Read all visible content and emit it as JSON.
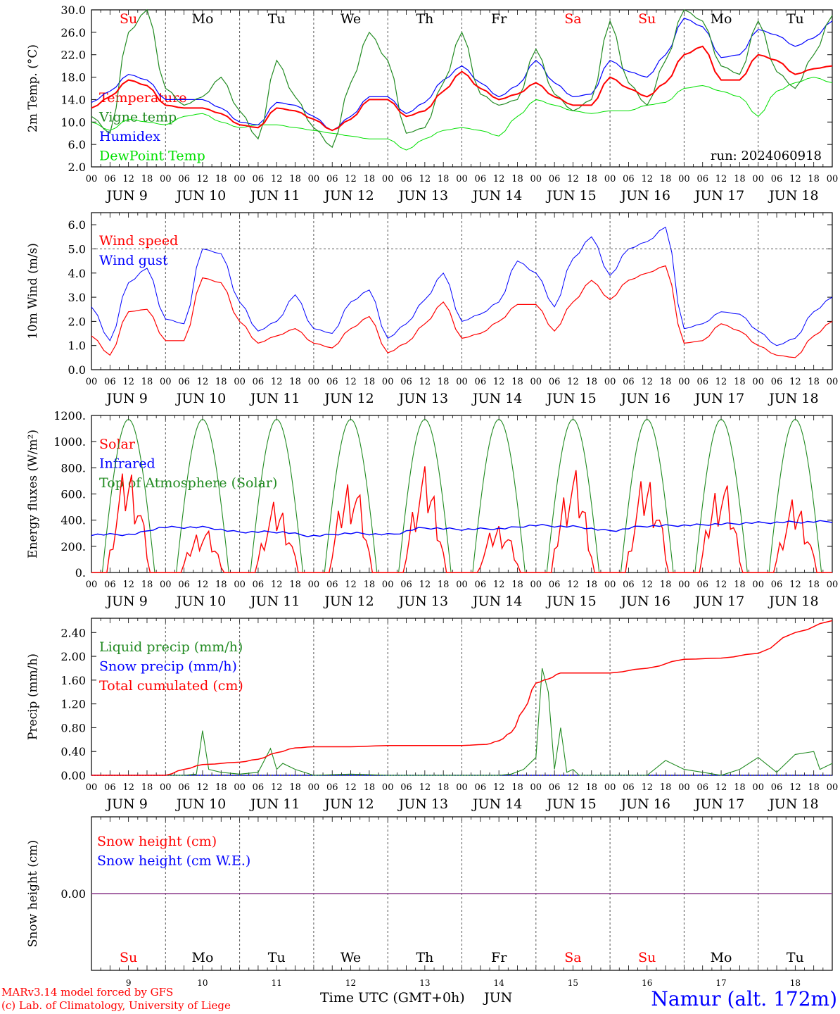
{
  "run_label": "run: 2024060918",
  "footer": {
    "credit_line1": "MARv3.14 model forced by GFS",
    "credit_line2": "(c) Lab. of Climatology, University of Liege",
    "time_axis_label": "Time UTC (GMT+0h)",
    "month": "JUN",
    "station": "Namur (alt. 172m)"
  },
  "colors": {
    "red": "#ff0000",
    "blue": "#0000ff",
    "green": "#228b22",
    "lightgreen": "#00e000",
    "weekend": "#ff0000",
    "weekday": "#000000",
    "grid": "#555555"
  },
  "days": [
    "9",
    "10",
    "11",
    "12",
    "13",
    "14",
    "15",
    "16",
    "17",
    "18"
  ],
  "day_labels": [
    "JUN  9",
    "JUN 10",
    "JUN 11",
    "JUN 12",
    "JUN 13",
    "JUN 14",
    "JUN 15",
    "JUN 16",
    "JUN 17",
    "JUN 18"
  ],
  "weekdays": [
    {
      "label": "Su",
      "weekend": true
    },
    {
      "label": "Mo",
      "weekend": false
    },
    {
      "label": "Tu",
      "weekend": false
    },
    {
      "label": "We",
      "weekend": false
    },
    {
      "label": "Th",
      "weekend": false
    },
    {
      "label": "Fr",
      "weekend": false
    },
    {
      "label": "Sa",
      "weekend": true
    },
    {
      "label": "Su",
      "weekend": true
    },
    {
      "label": "Mo",
      "weekend": false
    },
    {
      "label": "Tu",
      "weekend": false
    }
  ],
  "hour_ticks": [
    "00",
    "06",
    "12",
    "18"
  ],
  "chart_data": [
    {
      "id": "temperature",
      "type": "line",
      "ylabel": "2m Temp. (°C)",
      "ylim": [
        2,
        30
      ],
      "yticks": [
        "2.0",
        "6.0",
        "10.0",
        "14.0",
        "18.0",
        "22.0",
        "26.0",
        "30.0"
      ],
      "ytick_values": [
        2,
        6,
        10,
        14,
        18,
        22,
        26,
        30
      ],
      "legend": [
        {
          "name": "Temperature",
          "color": "#ff0000"
        },
        {
          "name": "Vigne temp",
          "color": "#228b22"
        },
        {
          "name": "Humidex",
          "color": "#0000ff"
        },
        {
          "name": "DewPoint Temp",
          "color": "#00e000"
        }
      ],
      "x_hours": [
        0,
        6,
        12,
        18,
        24,
        30,
        36,
        42,
        48,
        54,
        60,
        66,
        72,
        78,
        84,
        90,
        96,
        102,
        108,
        114,
        120,
        126,
        132,
        138,
        144,
        150,
        156,
        162,
        168,
        174,
        180,
        186,
        192,
        198,
        204,
        210,
        216,
        222,
        228,
        234,
        240
      ],
      "series": [
        {
          "name": "Temperature",
          "color": "#ff0000",
          "width": 2,
          "values": [
            12.5,
            14.5,
            17.5,
            16.5,
            13.0,
            12.5,
            12.5,
            11.5,
            9.5,
            9.0,
            12.5,
            12.0,
            10.5,
            8.5,
            10.5,
            14.0,
            14.0,
            11.0,
            12.0,
            15.5,
            19.0,
            16.0,
            14.0,
            15.0,
            17.0,
            14.5,
            13.0,
            13.0,
            18.0,
            16.0,
            14.5,
            17.0,
            22.0,
            23.5,
            17.5,
            17.5,
            22.0,
            21.0,
            18.5,
            19.5,
            20.0
          ]
        },
        {
          "name": "Vigne temp",
          "color": "#228b22",
          "width": 1.2,
          "values": [
            11.0,
            8.0,
            26.0,
            30.0,
            16.0,
            13.0,
            14.5,
            18.0,
            12.0,
            7.0,
            21.0,
            14.5,
            9.0,
            5.5,
            17.0,
            26.0,
            21.0,
            8.0,
            9.0,
            17.0,
            26.0,
            15.0,
            13.0,
            14.0,
            23.0,
            15.0,
            12.0,
            14.0,
            28.0,
            17.0,
            13.0,
            21.0,
            30.0,
            28.0,
            20.0,
            18.5,
            28.0,
            19.0,
            16.0,
            22.0,
            29.0
          ]
        },
        {
          "name": "Humidex",
          "color": "#0000ff",
          "width": 1.2,
          "values": [
            13.5,
            15.5,
            18.5,
            17.5,
            14.0,
            14.0,
            14.0,
            12.5,
            10.0,
            9.5,
            13.5,
            13.0,
            11.0,
            8.5,
            11.0,
            14.5,
            14.5,
            11.5,
            13.5,
            17.5,
            20.0,
            17.0,
            14.5,
            16.5,
            21.0,
            17.0,
            14.5,
            15.0,
            21.0,
            19.0,
            18.0,
            22.0,
            28.5,
            27.0,
            21.5,
            22.0,
            26.5,
            25.5,
            23.5,
            25.0,
            28.0
          ]
        },
        {
          "name": "DewPoint Temp",
          "color": "#00e000",
          "width": 1,
          "values": [
            10.0,
            8.5,
            10.5,
            10.0,
            9.5,
            11.0,
            11.5,
            10.0,
            9.0,
            9.5,
            9.5,
            9.0,
            8.5,
            8.0,
            7.5,
            7.0,
            7.0,
            5.0,
            7.0,
            8.5,
            9.0,
            8.5,
            7.5,
            11.0,
            14.0,
            13.0,
            12.0,
            11.5,
            12.0,
            12.0,
            13.0,
            13.5,
            16.0,
            16.5,
            15.5,
            14.5,
            11.0,
            15.5,
            17.0,
            18.0,
            17.0
          ]
        }
      ]
    },
    {
      "id": "wind",
      "type": "line",
      "ylabel": "10m Wind (m/s)",
      "ylim": [
        0,
        6.5
      ],
      "yticks": [
        "0.0",
        "1.0",
        "2.0",
        "3.0",
        "4.0",
        "5.0",
        "6.0"
      ],
      "ytick_values": [
        0,
        1,
        2,
        3,
        4,
        5,
        6
      ],
      "reference_line": 5,
      "legend": [
        {
          "name": "Wind speed",
          "color": "#ff0000"
        },
        {
          "name": "Wind gust",
          "color": "#0000ff"
        }
      ],
      "x_hours": [
        0,
        6,
        12,
        18,
        24,
        30,
        36,
        42,
        48,
        54,
        60,
        66,
        72,
        78,
        84,
        90,
        96,
        102,
        108,
        114,
        120,
        126,
        132,
        138,
        144,
        150,
        156,
        162,
        168,
        174,
        180,
        186,
        192,
        198,
        204,
        210,
        216,
        222,
        228,
        234,
        240
      ],
      "series": [
        {
          "name": "Wind speed",
          "color": "#ff0000",
          "width": 1.2,
          "values": [
            1.4,
            0.6,
            2.4,
            2.5,
            1.2,
            1.2,
            3.8,
            3.6,
            2.0,
            1.1,
            1.4,
            1.7,
            1.1,
            0.9,
            1.7,
            2.2,
            0.7,
            1.1,
            1.9,
            2.8,
            1.3,
            1.5,
            2.0,
            2.7,
            2.7,
            1.6,
            2.8,
            3.7,
            2.9,
            3.7,
            4.0,
            4.3,
            1.1,
            1.2,
            1.9,
            1.6,
            1.0,
            0.6,
            0.5,
            1.4,
            2.0
          ]
        },
        {
          "name": "Wind gust",
          "color": "#0000ff",
          "width": 1,
          "values": [
            2.6,
            1.2,
            3.6,
            4.2,
            2.1,
            1.9,
            5.0,
            4.8,
            2.8,
            1.6,
            2.0,
            3.1,
            1.7,
            1.5,
            2.8,
            3.3,
            1.3,
            1.9,
            2.9,
            4.0,
            2.0,
            2.3,
            2.8,
            4.5,
            4.0,
            2.6,
            4.6,
            5.5,
            3.9,
            5.0,
            5.3,
            5.9,
            1.7,
            1.9,
            2.4,
            2.3,
            1.6,
            1.0,
            1.3,
            2.4,
            3.0
          ]
        }
      ]
    },
    {
      "id": "energy",
      "type": "line",
      "ylabel": "Energy fluxes (W/m²)",
      "ylim": [
        0,
        1200
      ],
      "yticks": [
        "0.",
        "200.",
        "400.",
        "600.",
        "800.",
        "1000.",
        "1200."
      ],
      "ytick_values": [
        0,
        200,
        400,
        600,
        800,
        1000,
        1200
      ],
      "legend": [
        {
          "name": "Solar",
          "color": "#ff0000"
        },
        {
          "name": "Infrared",
          "color": "#0000ff"
        },
        {
          "name": "Top of Atmosphere (Solar)",
          "color": "#228b22"
        }
      ],
      "toa_peak": 1170,
      "solar_day_peaks": [
        910,
        380,
        600,
        820,
        880,
        420,
        870,
        840,
        800,
        620
      ],
      "infrared": {
        "x_hours": [
          0,
          12,
          24,
          36,
          48,
          60,
          72,
          84,
          96,
          108,
          120,
          132,
          144,
          156,
          168,
          180,
          192,
          204,
          216,
          228,
          240
        ],
        "values": [
          290,
          290,
          345,
          345,
          310,
          310,
          280,
          300,
          290,
          340,
          330,
          335,
          360,
          350,
          320,
          355,
          360,
          370,
          380,
          385,
          390
        ]
      }
    },
    {
      "id": "precip",
      "type": "line",
      "ylabel": "Precip (mm/h)",
      "ylim": [
        0,
        2.64
      ],
      "yticks": [
        "0.00",
        "0.40",
        "0.80",
        "1.20",
        "1.60",
        "2.00",
        "2.40"
      ],
      "ytick_values": [
        0,
        0.4,
        0.8,
        1.2,
        1.6,
        2.0,
        2.4
      ],
      "legend": [
        {
          "name": "Liquid precip (mm/h)",
          "color": "#228b22"
        },
        {
          "name": "Snow precip (mm/h)",
          "color": "#0000ff"
        },
        {
          "name": "Total cumulated (cm)",
          "color": "#ff0000"
        }
      ],
      "liquid": {
        "x_hours": [
          0,
          30,
          34,
          36,
          38,
          42,
          48,
          54,
          58,
          60,
          62,
          66,
          72,
          84,
          96,
          108,
          120,
          132,
          136,
          140,
          144,
          146,
          148,
          150,
          152,
          154,
          156,
          158,
          160,
          166,
          180,
          186,
          192,
          204,
          210,
          216,
          222,
          228,
          234,
          236,
          240
        ],
        "values": [
          0,
          0,
          0.02,
          0.75,
          0.1,
          0.05,
          0.02,
          0.05,
          0.45,
          0.1,
          0.2,
          0.1,
          0,
          0.02,
          0,
          0,
          0,
          0,
          0.02,
          0.1,
          0.3,
          1.8,
          1.4,
          0.1,
          0.8,
          0.05,
          0.1,
          0,
          0,
          0,
          0,
          0.25,
          0.1,
          0,
          0.1,
          0.3,
          0.05,
          0.35,
          0.4,
          0.1,
          0.2
        ]
      },
      "cumulated": {
        "x_hours": [
          0,
          24,
          30,
          36,
          48,
          54,
          60,
          66,
          72,
          84,
          96,
          108,
          120,
          128,
          132,
          136,
          140,
          144,
          148,
          152,
          156,
          168,
          180,
          192,
          204,
          216,
          228,
          240
        ],
        "values": [
          0,
          0,
          0.1,
          0.18,
          0.22,
          0.27,
          0.38,
          0.46,
          0.48,
          0.48,
          0.5,
          0.5,
          0.5,
          0.52,
          0.58,
          0.72,
          1.1,
          1.55,
          1.62,
          1.72,
          1.72,
          1.72,
          1.8,
          1.95,
          1.97,
          2.05,
          2.4,
          2.6
        ]
      }
    },
    {
      "id": "snow",
      "type": "line",
      "ylabel": "Snow height (cm)",
      "ylim": [
        -1,
        1
      ],
      "yticks": [
        "0.00"
      ],
      "ytick_values": [
        0
      ],
      "legend": [
        {
          "name": "Snow height (cm)",
          "color": "#ff0000"
        },
        {
          "name": "Snow height (cm W.E.)",
          "color": "#0000ff"
        }
      ],
      "series": [
        {
          "name": "Snow height",
          "color": "#8b3a8b",
          "values": [
            0,
            0
          ]
        }
      ]
    }
  ]
}
